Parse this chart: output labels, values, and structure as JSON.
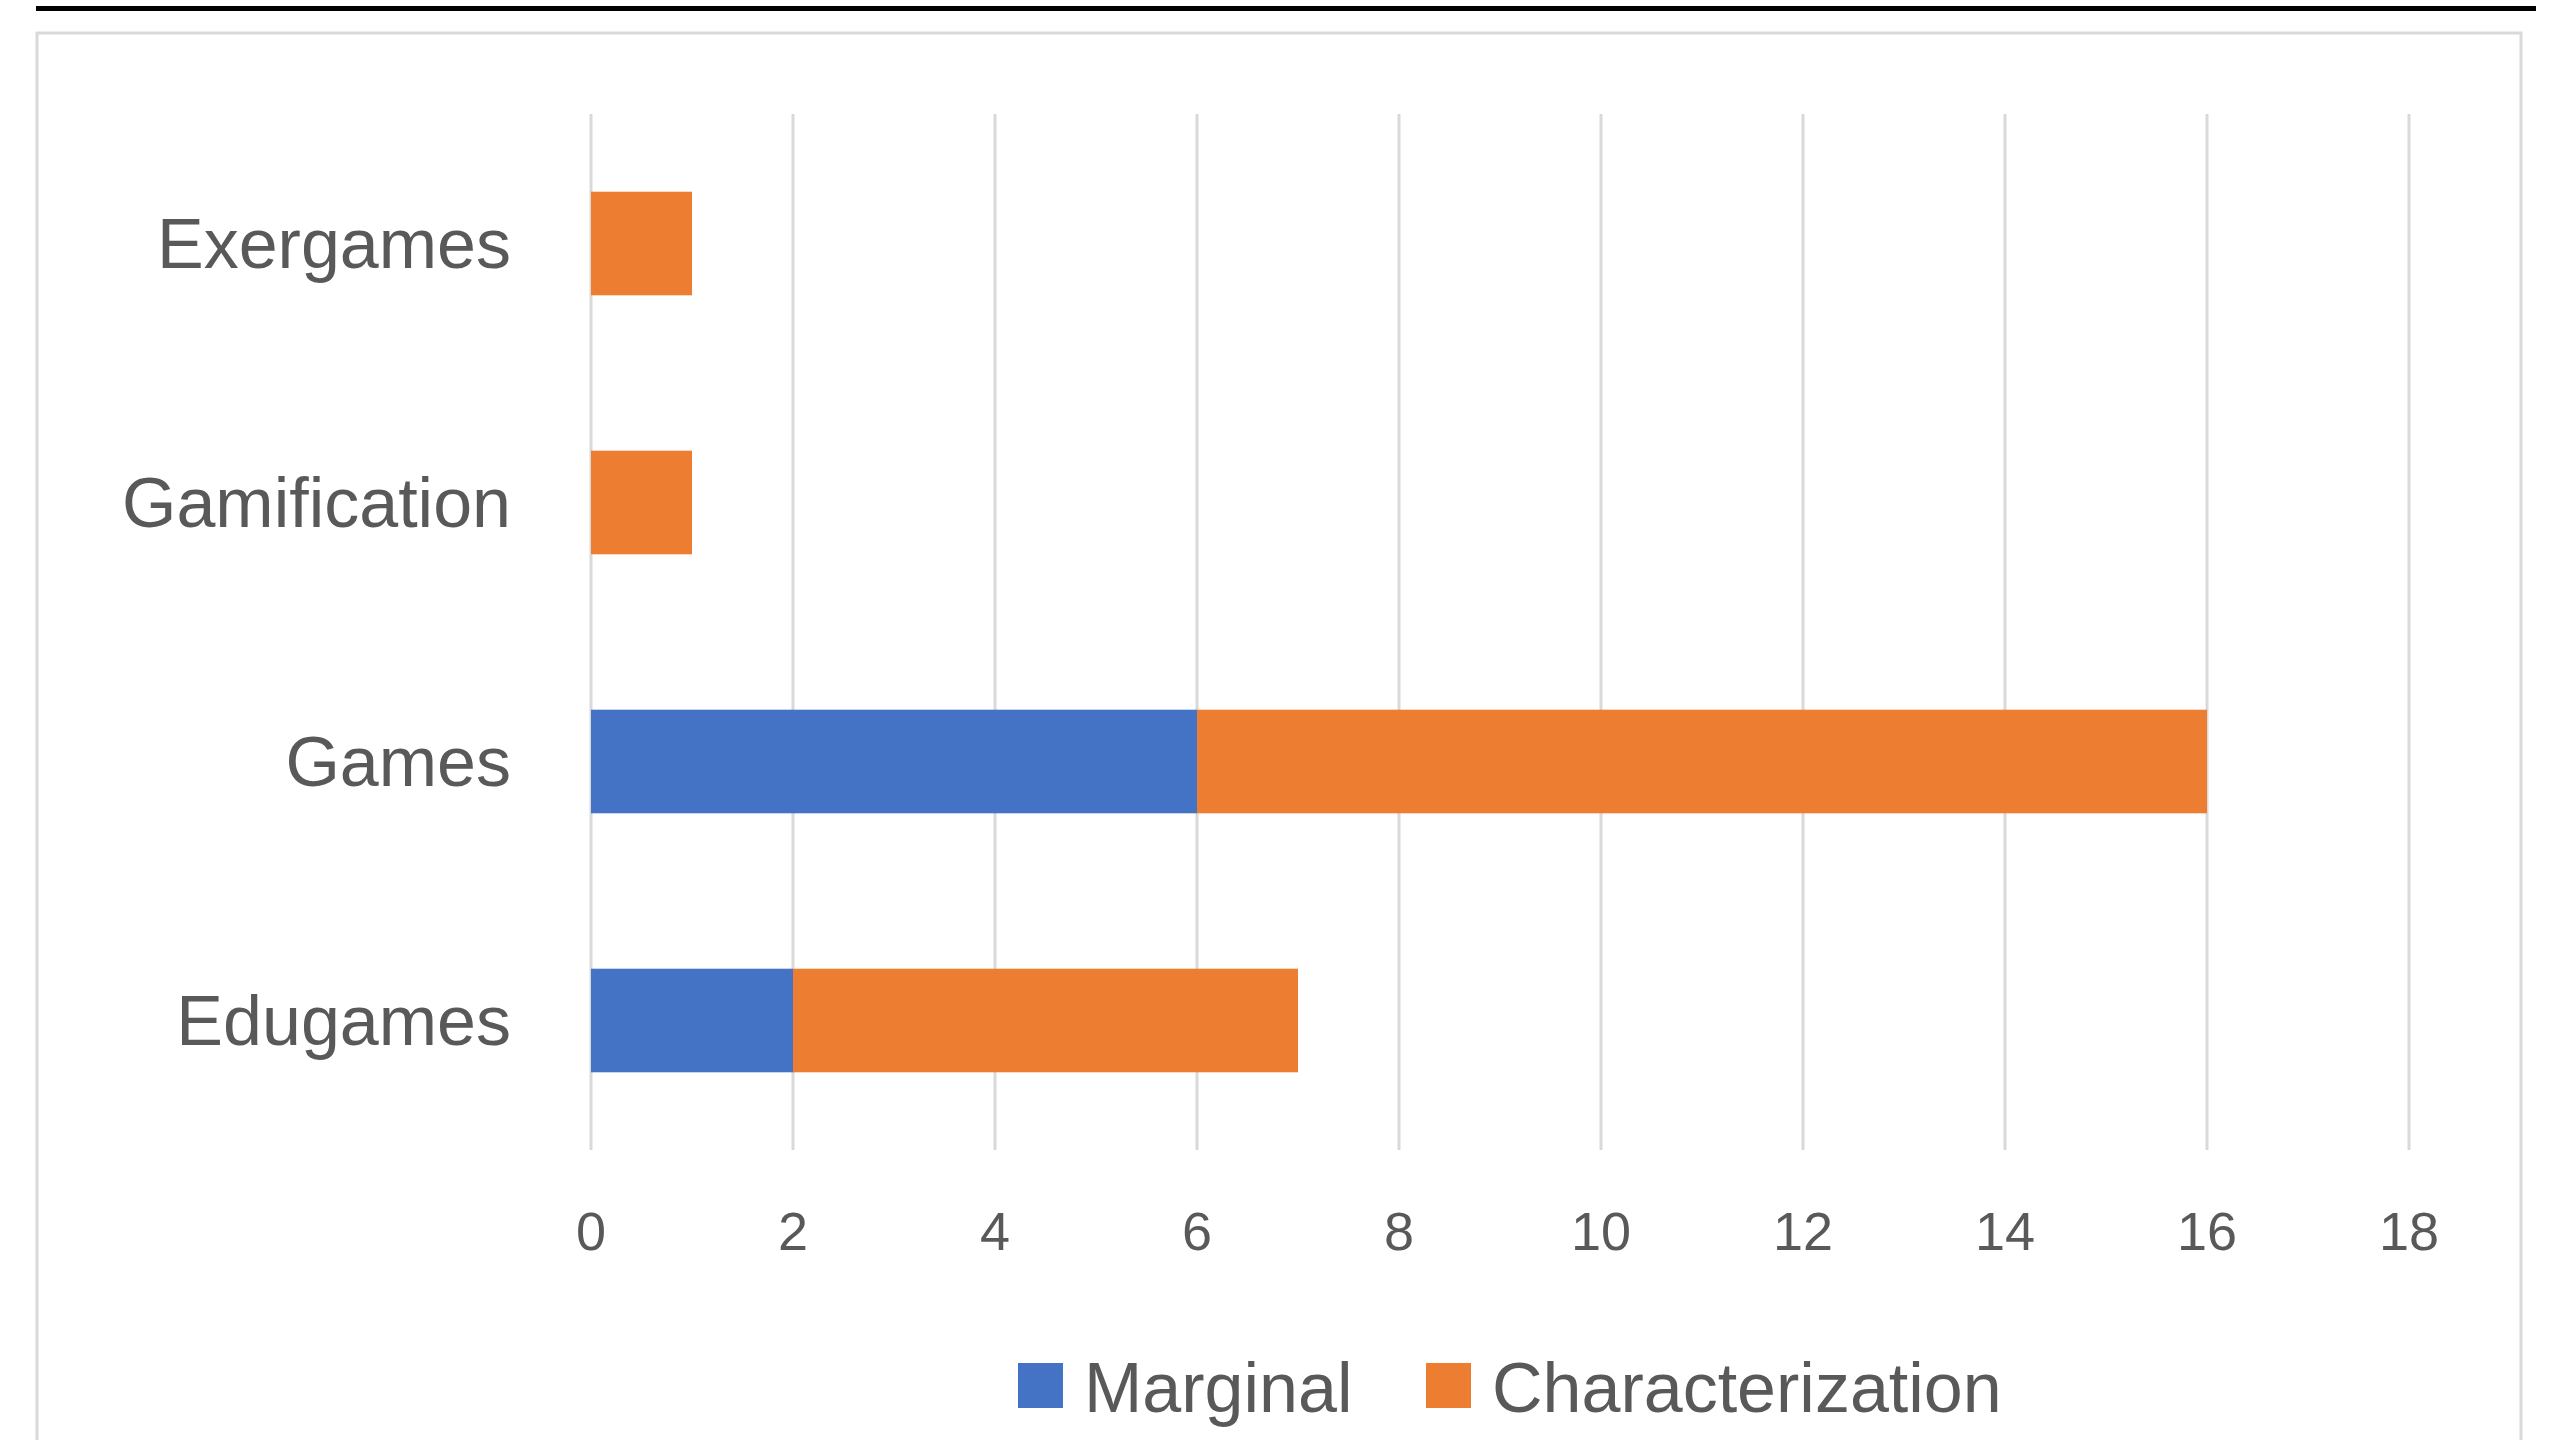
{
  "chart_data": {
    "type": "bar",
    "orientation": "horizontal",
    "stacked": true,
    "categories": [
      "Exergames",
      "Gamification",
      "Games",
      "Edugames"
    ],
    "series": [
      {
        "name": "Marginal",
        "color": "#4472c4",
        "values": [
          0,
          0,
          6,
          2
        ]
      },
      {
        "name": "Characterization",
        "color": "#ed7d31",
        "values": [
          1,
          1,
          10,
          5
        ]
      }
    ],
    "xlim": [
      0,
      18
    ],
    "xticks": [
      0,
      2,
      4,
      6,
      8,
      10,
      12,
      14,
      16,
      18
    ],
    "grid": "x",
    "legend": "bottom"
  }
}
